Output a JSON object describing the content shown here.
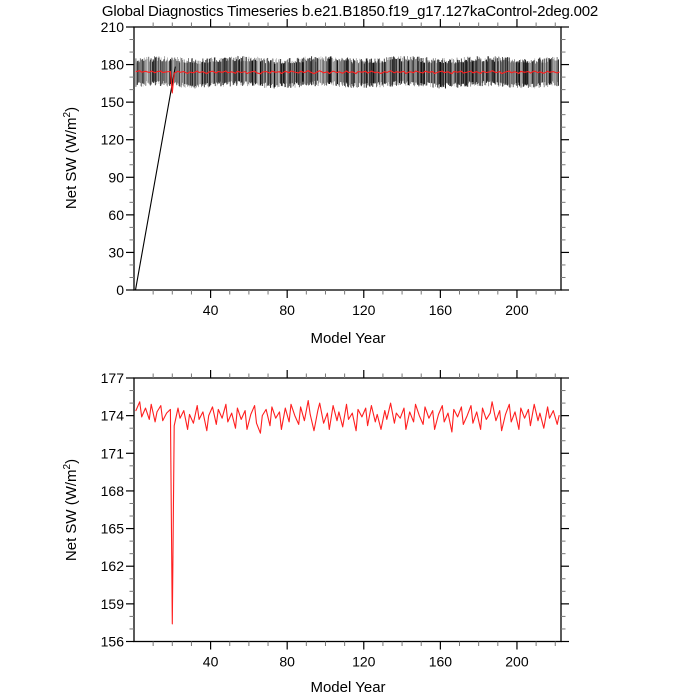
{
  "title": "Global Diagnostics Timeseries b.e21.B1850.f19_g17.127kaControl-2deg.002",
  "chart_data": {
    "type": "line",
    "title": "Global Diagnostics Timeseries b.e21.B1850.f19_g17.127kaControl-2deg.002",
    "legend": "none",
    "grid": "off",
    "panels": [
      {
        "id": "monthly-and-annual",
        "xlabel": "Model Year",
        "ylabel": "Net SW (W/m2)",
        "ylabel_parts": [
          "Net SW (W/m",
          "2",
          ")"
        ],
        "xlim": [
          0,
          223
        ],
        "ylim": [
          0,
          210
        ],
        "x_major_ticks": [
          40,
          80,
          120,
          160,
          200
        ],
        "x_minor_step": 10,
        "y_major_ticks": [
          0,
          30,
          60,
          90,
          120,
          150,
          180,
          210
        ],
        "y_minor_step": 10,
        "series": [
          {
            "name": "monthly-mean-net-sw",
            "color": "#000000",
            "style": "noisy-monthly-band",
            "band": {
              "x_start": 1,
              "x_end": 222,
              "min": 164.0,
              "max": 183.8,
              "jitter": 2.3
            }
          },
          {
            "name": "spinup-segment",
            "color": "#000000",
            "style": "line",
            "points": [
              [
                0.8,
                0
              ],
              [
                21.5,
                178
              ]
            ]
          },
          {
            "name": "annual-mean-net-sw",
            "color": "#ff1f1f",
            "style": "line",
            "points_ref": "annual"
          }
        ]
      },
      {
        "id": "annual-mean-zoom",
        "xlabel": "Model Year",
        "ylabel": "Net SW (W/m2)",
        "ylabel_parts": [
          "Net SW (W/m",
          "2",
          ")"
        ],
        "xlim": [
          0,
          223
        ],
        "ylim": [
          156,
          177
        ],
        "x_major_ticks": [
          40,
          80,
          120,
          160,
          200
        ],
        "x_minor_step": 10,
        "y_major_ticks": [
          156,
          159,
          162,
          165,
          168,
          171,
          174,
          177
        ],
        "y_minor_step": 1,
        "series": [
          {
            "name": "annual-mean-net-sw",
            "color": "#ff1f1f",
            "style": "line",
            "points_ref": "annual"
          }
        ]
      }
    ],
    "datasets": {
      "annual": [
        [
          1,
          174.4
        ],
        [
          3,
          175.1
        ],
        [
          4,
          173.9
        ],
        [
          6,
          174.6
        ],
        [
          8,
          173.7
        ],
        [
          9,
          174.9
        ],
        [
          11,
          173.5
        ],
        [
          12,
          174.3
        ],
        [
          14,
          174.8
        ],
        [
          15,
          173.6
        ],
        [
          17,
          174.2
        ],
        [
          19,
          174.5
        ],
        [
          20,
          157.4
        ],
        [
          21,
          173.2
        ],
        [
          23,
          174.6
        ],
        [
          24,
          173.8
        ],
        [
          26,
          174.4
        ],
        [
          28,
          172.9
        ],
        [
          29,
          174.1
        ],
        [
          31,
          173.4
        ],
        [
          33,
          174.8
        ],
        [
          34,
          173.7
        ],
        [
          36,
          174.3
        ],
        [
          38,
          172.8
        ],
        [
          39,
          174.0
        ],
        [
          41,
          174.7
        ],
        [
          43,
          173.3
        ],
        [
          44,
          174.5
        ],
        [
          46,
          173.8
        ],
        [
          48,
          174.9
        ],
        [
          49,
          173.5
        ],
        [
          51,
          174.2
        ],
        [
          53,
          173.0
        ],
        [
          54,
          174.6
        ],
        [
          56,
          173.7
        ],
        [
          58,
          174.4
        ],
        [
          59,
          172.9
        ],
        [
          61,
          174.1
        ],
        [
          63,
          174.8
        ],
        [
          64,
          173.4
        ],
        [
          66,
          172.6
        ],
        [
          67,
          174.0
        ],
        [
          69,
          174.5
        ],
        [
          71,
          173.2
        ],
        [
          72,
          174.7
        ],
        [
          74,
          173.8
        ],
        [
          76,
          174.3
        ],
        [
          77,
          172.9
        ],
        [
          79,
          174.6
        ],
        [
          81,
          173.5
        ],
        [
          82,
          174.9
        ],
        [
          84,
          174.0
        ],
        [
          86,
          173.3
        ],
        [
          87,
          174.7
        ],
        [
          89,
          173.6
        ],
        [
          91,
          175.2
        ],
        [
          92,
          174.1
        ],
        [
          94,
          172.8
        ],
        [
          96,
          174.4
        ],
        [
          97,
          175.0
        ],
        [
          99,
          173.4
        ],
        [
          101,
          174.2
        ],
        [
          102,
          172.9
        ],
        [
          104,
          174.8
        ],
        [
          106,
          173.6
        ],
        [
          107,
          174.3
        ],
        [
          109,
          173.1
        ],
        [
          111,
          174.9
        ],
        [
          112,
          173.7
        ],
        [
          114,
          174.2
        ],
        [
          116,
          172.8
        ],
        [
          117,
          174.5
        ],
        [
          119,
          173.9
        ],
        [
          121,
          174.6
        ],
        [
          122,
          173.2
        ],
        [
          124,
          174.8
        ],
        [
          126,
          173.5
        ],
        [
          127,
          174.1
        ],
        [
          129,
          172.9
        ],
        [
          131,
          174.4
        ],
        [
          132,
          173.7
        ],
        [
          134,
          175.0
        ],
        [
          136,
          173.4
        ],
        [
          137,
          174.2
        ],
        [
          139,
          173.8
        ],
        [
          141,
          174.6
        ],
        [
          142,
          172.9
        ],
        [
          144,
          174.3
        ],
        [
          146,
          173.5
        ],
        [
          147,
          174.9
        ],
        [
          149,
          174.0
        ],
        [
          151,
          173.3
        ],
        [
          152,
          174.7
        ],
        [
          154,
          173.8
        ],
        [
          156,
          174.4
        ],
        [
          157,
          172.9
        ],
        [
          159,
          174.1
        ],
        [
          161,
          174.8
        ],
        [
          162,
          173.5
        ],
        [
          164,
          174.2
        ],
        [
          166,
          172.7
        ],
        [
          167,
          174.5
        ],
        [
          169,
          173.9
        ],
        [
          171,
          174.7
        ],
        [
          172,
          173.3
        ],
        [
          174,
          174.0
        ],
        [
          176,
          174.8
        ],
        [
          177,
          173.4
        ],
        [
          179,
          174.3
        ],
        [
          181,
          172.9
        ],
        [
          182,
          174.6
        ],
        [
          184,
          173.7
        ],
        [
          186,
          174.2
        ],
        [
          187,
          175.1
        ],
        [
          189,
          173.6
        ],
        [
          191,
          174.4
        ],
        [
          192,
          172.8
        ],
        [
          194,
          174.1
        ],
        [
          196,
          174.9
        ],
        [
          197,
          173.5
        ],
        [
          199,
          174.3
        ],
        [
          201,
          172.9
        ],
        [
          202,
          174.6
        ],
        [
          204,
          173.8
        ],
        [
          206,
          174.5
        ],
        [
          207,
          173.2
        ],
        [
          209,
          174.9
        ],
        [
          211,
          173.6
        ],
        [
          212,
          174.2
        ],
        [
          214,
          173.0
        ],
        [
          216,
          174.7
        ],
        [
          217,
          173.8
        ],
        [
          219,
          174.4
        ],
        [
          221,
          173.3
        ],
        [
          222,
          174.0
        ]
      ]
    }
  }
}
